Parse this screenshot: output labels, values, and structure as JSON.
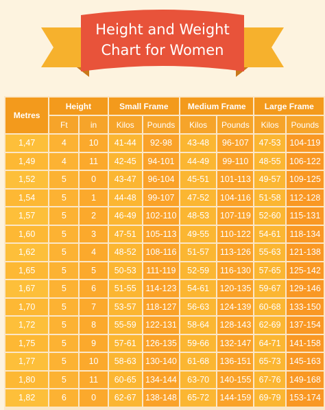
{
  "title": {
    "line1": "Height and Weight",
    "line2": "Chart for Women"
  },
  "colors": {
    "banner": "#e8533a",
    "ribbon": "#f6b12d",
    "header": "#f39a1c",
    "background": "#fdf3df"
  },
  "chart_data": {
    "type": "table",
    "title": "Height and Weight Chart for Women",
    "header_groups": [
      "Metres",
      "Height",
      "Small Frame",
      "Medium Frame",
      "Large Frame"
    ],
    "columns": [
      "Ft",
      "in",
      "Kilos",
      "Pounds",
      "Kilos",
      "Pounds",
      "Kilos",
      "Pounds"
    ],
    "rows": [
      [
        "1,47",
        "4",
        "10",
        "41-44",
        "92-98",
        "43-48",
        "96-107",
        "47-53",
        "104-119"
      ],
      [
        "1,49",
        "4",
        "11",
        "42-45",
        "94-101",
        "44-49",
        "99-110",
        "48-55",
        "106-122"
      ],
      [
        "1,52",
        "5",
        "0",
        "43-47",
        "96-104",
        "45-51",
        "101-113",
        "49-57",
        "109-125"
      ],
      [
        "1,54",
        "5",
        "1",
        "44-48",
        "99-107",
        "47-52",
        "104-116",
        "51-58",
        "112-128"
      ],
      [
        "1,57",
        "5",
        "2",
        "46-49",
        "102-110",
        "48-53",
        "107-119",
        "52-60",
        "115-131"
      ],
      [
        "1,60",
        "5",
        "3",
        "47-51",
        "105-113",
        "49-55",
        "110-122",
        "54-61",
        "118-134"
      ],
      [
        "1,62",
        "5",
        "4",
        "48-52",
        "108-116",
        "51-57",
        "113-126",
        "55-63",
        "121-138"
      ],
      [
        "1,65",
        "5",
        "5",
        "50-53",
        "111-119",
        "52-59",
        "116-130",
        "57-65",
        "125-142"
      ],
      [
        "1,67",
        "5",
        "6",
        "51-55",
        "114-123",
        "54-61",
        "120-135",
        "59-67",
        "129-146"
      ],
      [
        "1,70",
        "5",
        "7",
        "53-57",
        "118-127",
        "56-63",
        "124-139",
        "60-68",
        "133-150"
      ],
      [
        "1,72",
        "5",
        "8",
        "55-59",
        "122-131",
        "58-64",
        "128-143",
        "62-69",
        "137-154"
      ],
      [
        "1,75",
        "5",
        "9",
        "57-61",
        "126-135",
        "59-66",
        "132-147",
        "64-71",
        "141-158"
      ],
      [
        "1,77",
        "5",
        "10",
        "58-63",
        "130-140",
        "61-68",
        "136-151",
        "65-73",
        "145-163"
      ],
      [
        "1,80",
        "5",
        "11",
        "60-65",
        "134-144",
        "63-70",
        "140-155",
        "67-76",
        "149-168"
      ],
      [
        "1,82",
        "6",
        "0",
        "62-67",
        "138-148",
        "65-72",
        "144-159",
        "69-79",
        "153-174"
      ]
    ]
  }
}
